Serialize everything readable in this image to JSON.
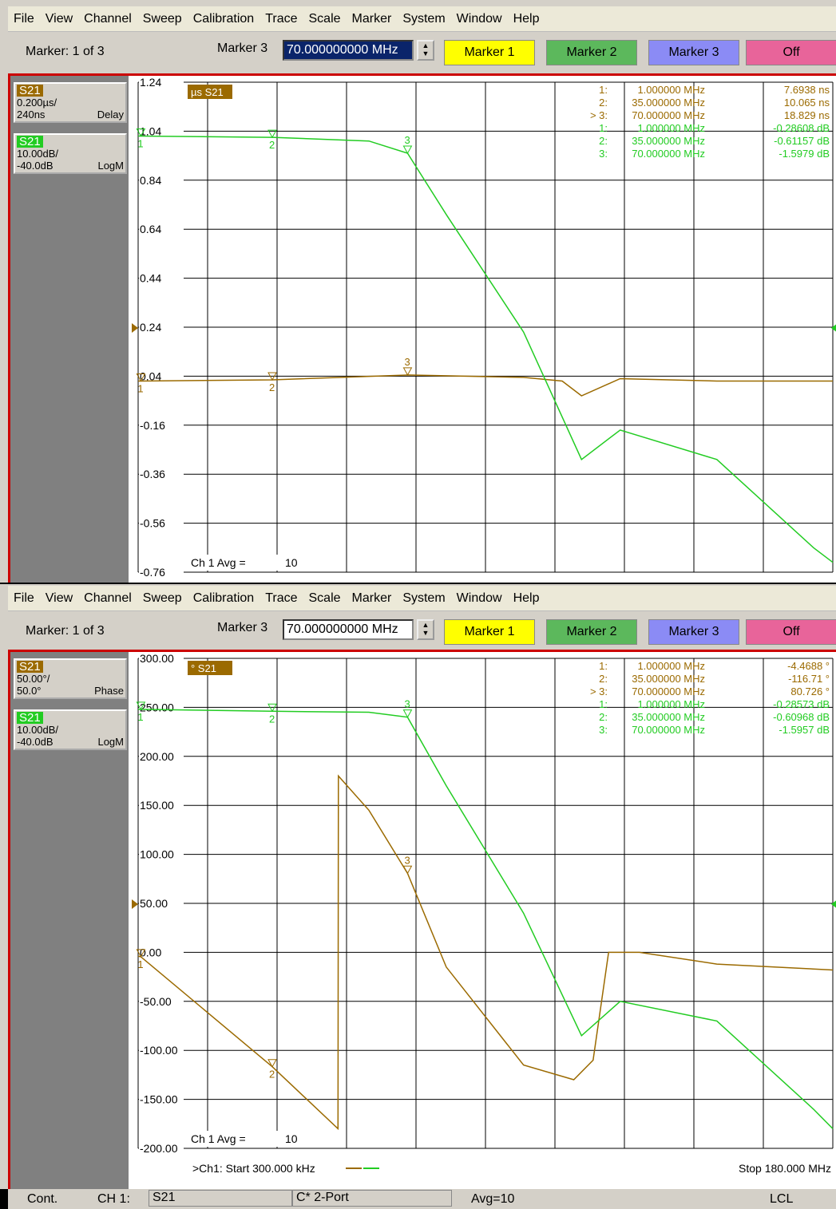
{
  "menu": [
    "File",
    "View",
    "Channel",
    "Sweep",
    "Calibration",
    "Trace",
    "Scale",
    "Marker",
    "System",
    "Window",
    "Help"
  ],
  "toolbar": {
    "marker_count": "Marker: 1 of 3",
    "marker_label": "Marker 3",
    "marker_value": "70.000000000 MHz",
    "buttons": [
      "Marker 1",
      "Marker 2",
      "Marker 3",
      "Off"
    ],
    "button_colors": [
      "#ffff00",
      "#5cb85c",
      "#8b8bf5",
      "#e8649a"
    ]
  },
  "colors": {
    "brown": "#9b6a00",
    "green": "#22cc22",
    "grid": "#000000"
  },
  "top": {
    "trace_boxes": [
      {
        "name": "S21",
        "l1": "0.200µs/",
        "l2a": "240ns",
        "l2b": "Delay",
        "color": "#9b6a00"
      },
      {
        "name": "S21",
        "l1": "10.00dB/",
        "l2a": "-40.0dB",
        "l2b": "LogM",
        "color": "#22cc22"
      }
    ],
    "trace_tag": "µs S21",
    "avg_label": "Ch 1 Avg =",
    "avg_value": "10",
    "markers": [
      {
        "n": "1:",
        "f": "1.000000 MHz",
        "v": "7.6938 ns",
        "c": "brown"
      },
      {
        "n": "2:",
        "f": "35.000000 MHz",
        "v": "10.065 ns",
        "c": "brown"
      },
      {
        "n": "> 3:",
        "f": "70.000000 MHz",
        "v": "18.829 ns",
        "c": "brown"
      },
      {
        "n": "1:",
        "f": "1.000000 MHz",
        "v": "-0.28608 dB",
        "c": "green"
      },
      {
        "n": "2:",
        "f": "35.000000 MHz",
        "v": "-0.61157 dB",
        "c": "green"
      },
      {
        "n": "3:",
        "f": "70.000000 MHz",
        "v": "-1.5979 dB",
        "c": "green"
      }
    ]
  },
  "bottom": {
    "trace_boxes": [
      {
        "name": "S21",
        "l1": "50.00°/",
        "l2a": "50.0°",
        "l2b": "Phase",
        "color": "#9b6a00"
      },
      {
        "name": "S21",
        "l1": "10.00dB/",
        "l2a": "-40.0dB",
        "l2b": "LogM",
        "color": "#22cc22"
      }
    ],
    "trace_tag": "° S21",
    "avg_label": "Ch 1 Avg =",
    "avg_value": "10",
    "start_label": ">Ch1: Start  300.000 kHz",
    "stop_label": "Stop  180.000 MHz",
    "markers": [
      {
        "n": "1:",
        "f": "1.000000 MHz",
        "v": "-4.4688 °",
        "c": "brown"
      },
      {
        "n": "2:",
        "f": "35.000000 MHz",
        "v": "-116.71 °",
        "c": "brown"
      },
      {
        "n": "> 3:",
        "f": "70.000000 MHz",
        "v": "80.726 °",
        "c": "brown"
      },
      {
        "n": "1:",
        "f": "1.000000 MHz",
        "v": "-0.28573 dB",
        "c": "green"
      },
      {
        "n": "2:",
        "f": "35.000000 MHz",
        "v": "-0.60968 dB",
        "c": "green"
      },
      {
        "n": "3:",
        "f": "70.000000 MHz",
        "v": "-1.5957 dB",
        "c": "green"
      }
    ]
  },
  "status": {
    "mode": "Cont.",
    "channel": "CH 1:",
    "param": "S21",
    "cal": "C* 2-Port",
    "avg": "Avg=10",
    "remote": "LCL"
  },
  "chart_data": [
    {
      "type": "line",
      "xlim": [
        0.3,
        180
      ],
      "y_ticks": [
        "1.24",
        "1.04",
        "0.84",
        "0.64",
        "0.44",
        "0.24",
        "0.04",
        "-0.16",
        "-0.36",
        "-0.56",
        "-0.76"
      ],
      "ylim": [
        -0.76,
        1.24
      ],
      "series": [
        {
          "name": "S21",
          "unit": "Delay µs",
          "x": [
            0.3,
            1,
            35,
            70,
            100,
            110,
            115,
            125,
            150,
            170,
            180
          ],
          "y": [
            0.02,
            0.02,
            0.025,
            0.045,
            0.035,
            0.02,
            -0.04,
            0.03,
            0.02,
            0.02,
            0.02
          ]
        },
        {
          "name": "S21",
          "unit": "LogM dB",
          "x": [
            0.3,
            1,
            35,
            60,
            70,
            80,
            100,
            115,
            125,
            150,
            175,
            180
          ],
          "y": [
            1.02,
            1.02,
            1.015,
            1.0,
            0.95,
            0.7,
            0.22,
            -0.3,
            -0.18,
            -0.3,
            -0.66,
            -0.72
          ]
        }
      ]
    },
    {
      "type": "line",
      "xlim": [
        0.3,
        180
      ],
      "y_ticks": [
        "300.00",
        "250.00",
        "200.00",
        "150.00",
        "100.00",
        "50.00",
        "0.00",
        "-50.00",
        "-100.00",
        "-150.00",
        "-200.00"
      ],
      "ylim": [
        -200,
        300
      ],
      "series": [
        {
          "name": "S21",
          "unit": "Phase °",
          "x": [
            0.3,
            1,
            35,
            52,
            52.1,
            60,
            70,
            80,
            100,
            113,
            118,
            122,
            130,
            150,
            180
          ],
          "y": [
            -4,
            -4.5,
            -116.7,
            -180,
            180,
            145,
            80.7,
            -15,
            -115,
            -130,
            -110,
            0,
            0,
            -12,
            -18
          ]
        },
        {
          "name": "S21",
          "unit": "LogM dB",
          "x": [
            0.3,
            1,
            35,
            60,
            70,
            80,
            100,
            115,
            125,
            150,
            175,
            180
          ],
          "y": [
            248,
            248,
            246,
            245,
            240,
            170,
            40,
            -85,
            -50,
            -70,
            -160,
            -180
          ]
        }
      ]
    }
  ]
}
